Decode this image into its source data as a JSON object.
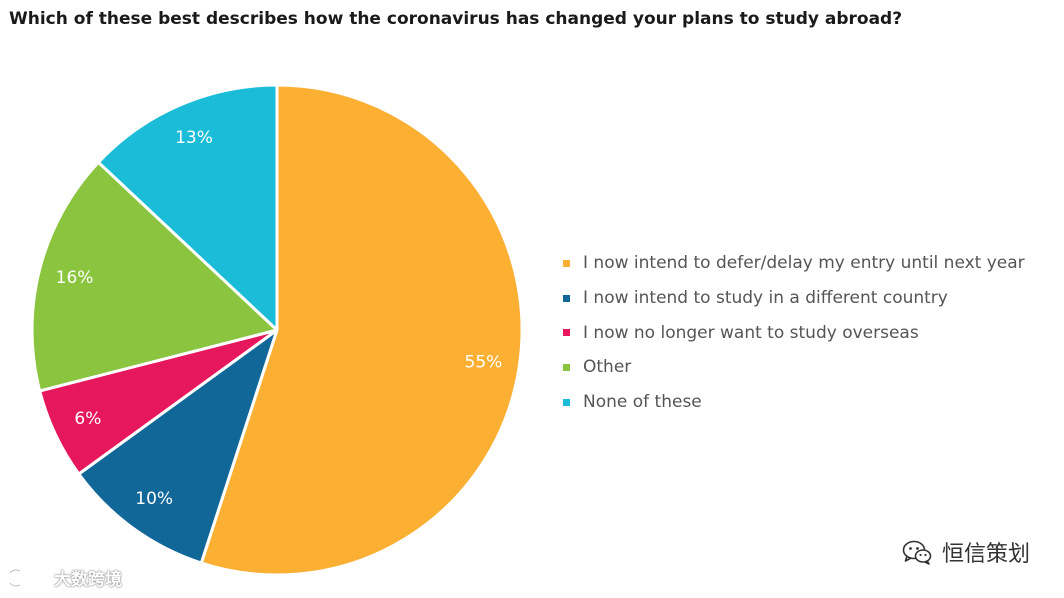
{
  "chart_data": {
    "type": "pie",
    "title": "Which of these best describes how the coronavirus has changed your plans to study abroad?",
    "slices": [
      {
        "label": "I now intend to defer/delay my entry until next year",
        "value": 55,
        "display": "55%",
        "color": "#FBB034"
      },
      {
        "label": "I now intend to study in a different country",
        "value": 10,
        "display": "10%",
        "color": "#126799"
      },
      {
        "label": "I now no longer want to study overseas",
        "value": 6,
        "display": "6%",
        "color": "#E6175C"
      },
      {
        "label": "Other",
        "value": 16,
        "display": "16%",
        "color": "#8BC540"
      },
      {
        "label": "None of these",
        "value": 13,
        "display": "13%",
        "color": "#1BBCD8"
      }
    ],
    "start_angle": "12 o'clock",
    "direction": "clockwise",
    "legend_position": "right"
  },
  "watermarks": {
    "right_text": "恒信策划",
    "left_text": "大数跨境",
    "right_icon": "wechat-icon",
    "left_icon": "brand-logo-icon"
  }
}
